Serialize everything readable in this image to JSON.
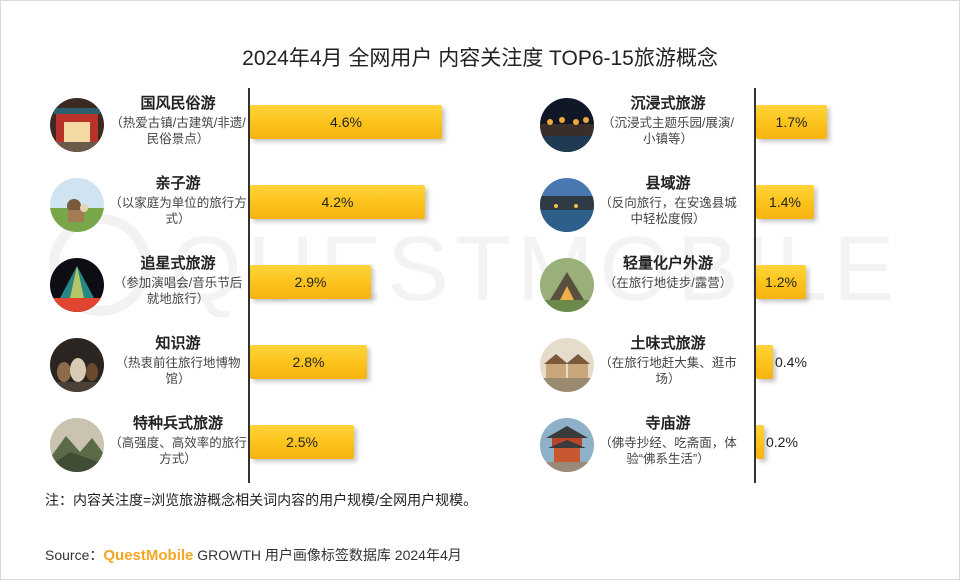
{
  "title": "2024年4月 全网用户 内容关注度 TOP6-15旅游概念",
  "chart_data": {
    "type": "bar",
    "orientation": "horizontal",
    "title": "2024年4月 全网用户 内容关注度 TOP6-15旅游概念",
    "unit": "%",
    "xlim": [
      0,
      6
    ],
    "left_items": [
      {
        "name": "国风民俗游",
        "desc": "（热爱古镇/古建筑/非遗/民俗景点）",
        "value": 4.6,
        "label": "4.6%",
        "icon": "ancient-gate-icon"
      },
      {
        "name": "亲子游",
        "desc": "（以家庭为单位的旅行方式）",
        "value": 4.2,
        "label": "4.2%",
        "icon": "family-meadow-icon"
      },
      {
        "name": "追星式旅游",
        "desc": "（参加演唱会/音乐节后就地旅行）",
        "value": 2.9,
        "label": "2.9%",
        "icon": "concert-stage-icon"
      },
      {
        "name": "知识游",
        "desc": "（热衷前往旅行地博物馆）",
        "value": 2.8,
        "label": "2.8%",
        "icon": "museum-pottery-icon"
      },
      {
        "name": "特种兵式旅游",
        "desc": "（高强度、高效率的旅行方式）",
        "value": 2.5,
        "label": "2.5%",
        "icon": "mountain-view-icon"
      }
    ],
    "right_items": [
      {
        "name": "沉浸式旅游",
        "desc": "（沉浸式主题乐园/展演/小镇等）",
        "value": 1.7,
        "label": "1.7%",
        "icon": "night-town-icon"
      },
      {
        "name": "县域游",
        "desc": "（反向旅行，在安逸县城中轻松度假）",
        "value": 1.4,
        "label": "1.4%",
        "icon": "county-river-icon"
      },
      {
        "name": "轻量化户外游",
        "desc": "（在旅行地徒步/露营）",
        "value": 1.2,
        "label": "1.2%",
        "icon": "camping-tent-icon"
      },
      {
        "name": "土味式旅游",
        "desc": "（在旅行地赶大集、逛市场）",
        "value": 0.4,
        "label": "0.4%",
        "icon": "market-stalls-icon"
      },
      {
        "name": "寺庙游",
        "desc": "（佛寺抄经、吃斋面，体验“佛系生活”）",
        "value": 0.2,
        "label": "0.2%",
        "icon": "temple-icon"
      }
    ]
  },
  "note": "注：内容关注度=浏览旅游概念相关词内容的用户规模/全网用户规模。",
  "source": {
    "prefix": "Source：",
    "brand": "QuestMobile",
    "text": " GROWTH 用户画像标签数据库 2024年4月"
  },
  "watermark": "QUESTMOBILE",
  "colors": {
    "bar": "#fcc21b",
    "brand": "#f5a623"
  }
}
